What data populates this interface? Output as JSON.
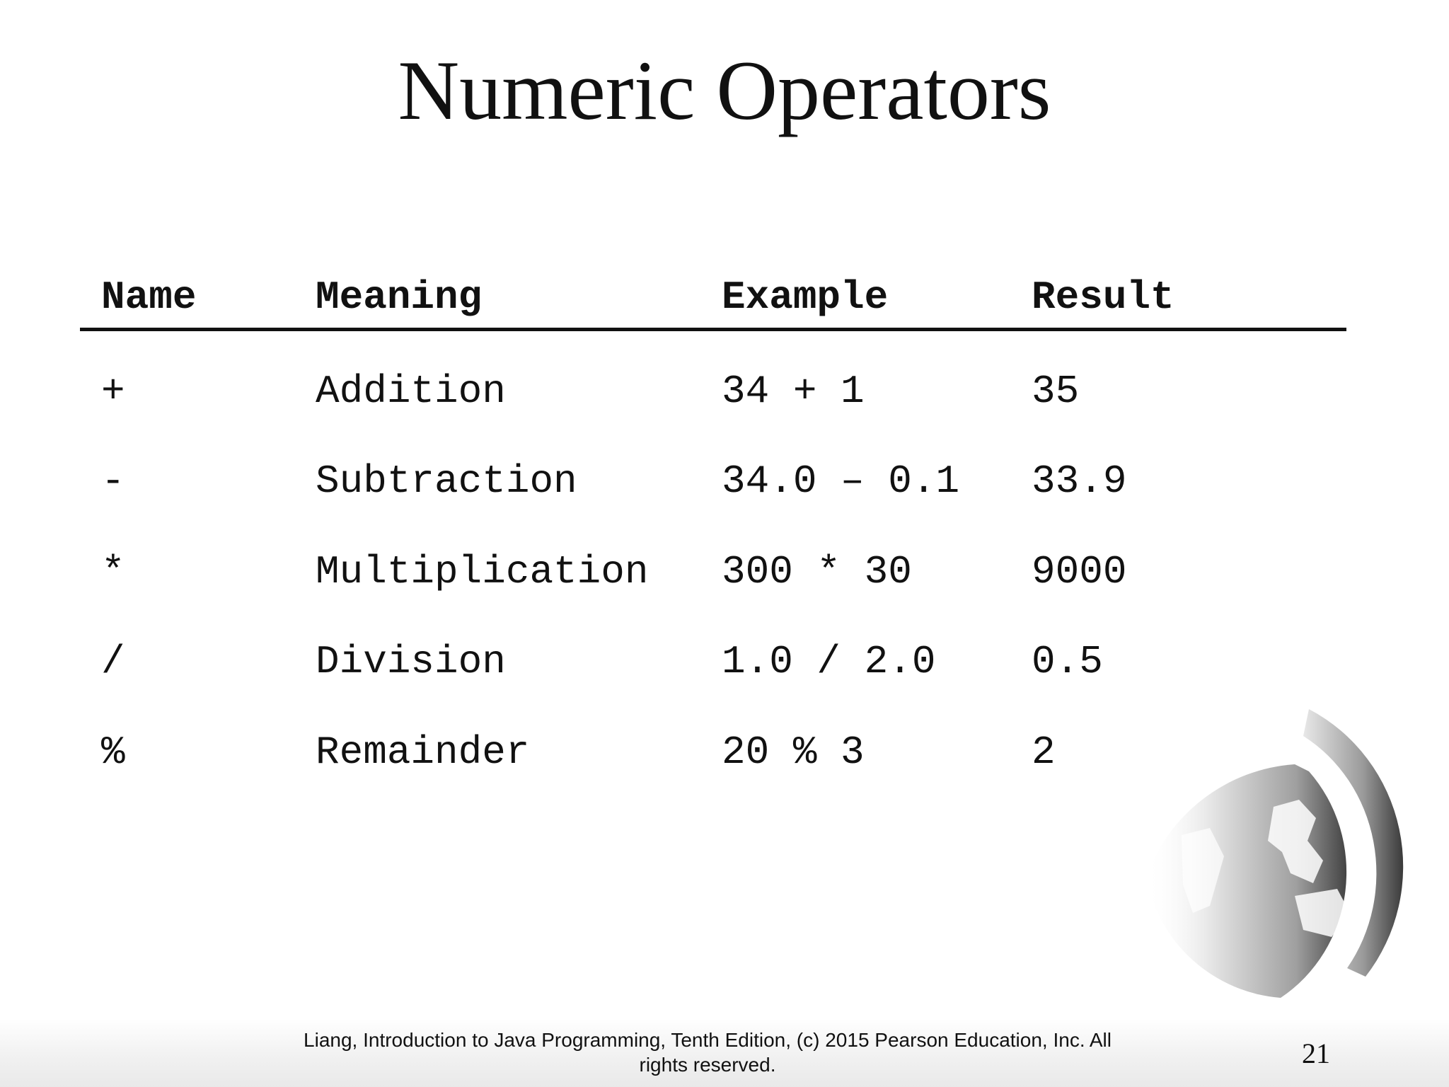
{
  "slide": {
    "title": "Numeric Operators",
    "table": {
      "headers": [
        "Name",
        "Meaning",
        "Example",
        "Result"
      ],
      "rows": [
        [
          "+",
          "Addition",
          "34 + 1",
          "35"
        ],
        [
          "-",
          "Subtraction",
          "34.0 – 0.1",
          "33.9"
        ],
        [
          "*",
          "Multiplication",
          "300 * 30",
          "9000"
        ],
        [
          "/",
          "Division",
          "1.0 / 2.0",
          "0.5"
        ],
        [
          "%",
          "Remainder",
          "20 % 3",
          "2"
        ]
      ]
    },
    "footer": {
      "line1": "Liang, Introduction to Java Programming, Tenth Edition, (c) 2015 Pearson Education, Inc. All",
      "line2": "rights reserved."
    },
    "page_number": "21",
    "decoration": {
      "icon": "globe-icon",
      "colors": [
        "#3a3a3a",
        "#9a9a9a",
        "#e8e8e8"
      ]
    }
  }
}
